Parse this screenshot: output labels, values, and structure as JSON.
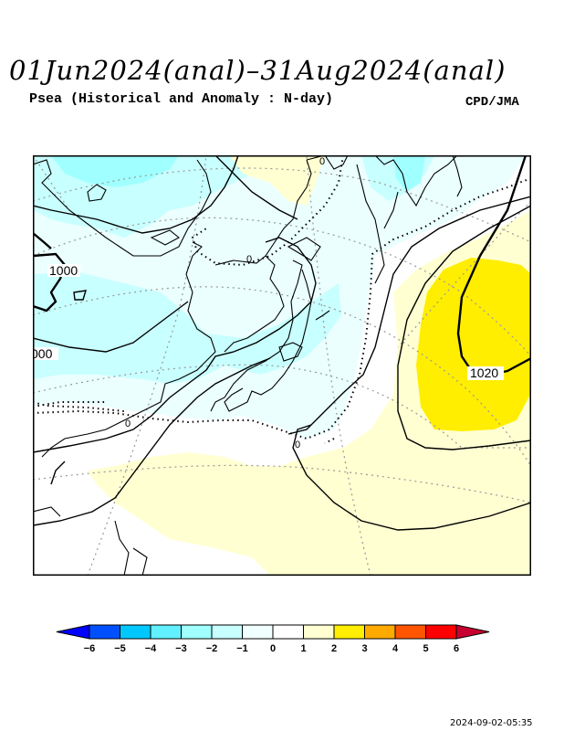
{
  "title": "01Jun2024(anal)–31Aug2024(anal)",
  "subtitle": "Psea (Historical and Anomaly : N-day)",
  "agency": "CPD/JMA",
  "timestamp": "2024-09-02-05:35",
  "map": {
    "contour_labels": [
      {
        "id": "isobar-1000-label",
        "text": "1000"
      },
      {
        "id": "isobar-1000-edge-label",
        "text": "000"
      },
      {
        "id": "isobar-1020-label",
        "text": "1020"
      },
      {
        "id": "anomaly-zero-label-a",
        "text": "0"
      },
      {
        "id": "anomaly-zero-label-b",
        "text": "0"
      },
      {
        "id": "anomaly-zero-label-c",
        "text": "0"
      },
      {
        "id": "anomaly-zero-label-d",
        "text": "0"
      }
    ]
  },
  "colorbar": {
    "ticks": [
      "−6",
      "−5",
      "−4",
      "−3",
      "−2",
      "−1",
      "0",
      "1",
      "2",
      "3",
      "4",
      "5",
      "6"
    ],
    "colors": [
      "#0000ff",
      "#0050ff",
      "#00c8ff",
      "#60f0ff",
      "#a0ffff",
      "#c8ffff",
      "#f0ffff",
      "#ffffff",
      "#ffffd2",
      "#ffee00",
      "#ffaa00",
      "#ff5500",
      "#ff0000",
      "#c80032"
    ]
  }
}
